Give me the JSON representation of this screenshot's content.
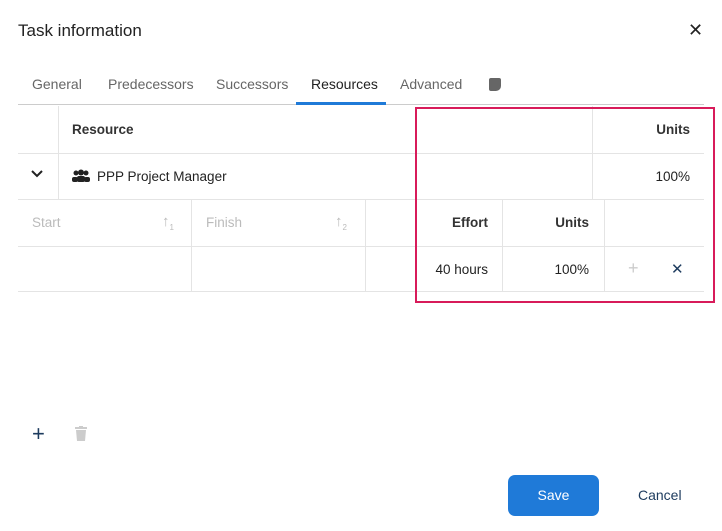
{
  "dialog": {
    "title": "Task information",
    "close_icon": "close-icon"
  },
  "tabs": [
    {
      "label": "General"
    },
    {
      "label": "Predecessors"
    },
    {
      "label": "Successors"
    },
    {
      "label": "Resources",
      "active": true
    },
    {
      "label": "Advanced"
    },
    {
      "icon": "note-icon"
    }
  ],
  "resource_table": {
    "headers": {
      "resource": "Resource",
      "units": "Units"
    },
    "rows": [
      {
        "name": "PPP Project Manager",
        "units": "100%",
        "icon": "group-icon"
      }
    ]
  },
  "assignment_table": {
    "headers": {
      "start": "Start",
      "start_sort": "1",
      "finish": "Finish",
      "finish_sort": "2",
      "effort": "Effort",
      "units": "Units"
    },
    "rows": [
      {
        "start": "",
        "finish": "",
        "effort": "40 hours",
        "units": "100%"
      }
    ]
  },
  "footer": {
    "save": "Save",
    "cancel": "Cancel"
  },
  "colors": {
    "accent": "#1f7ad8",
    "highlight": "#d81b5a"
  }
}
